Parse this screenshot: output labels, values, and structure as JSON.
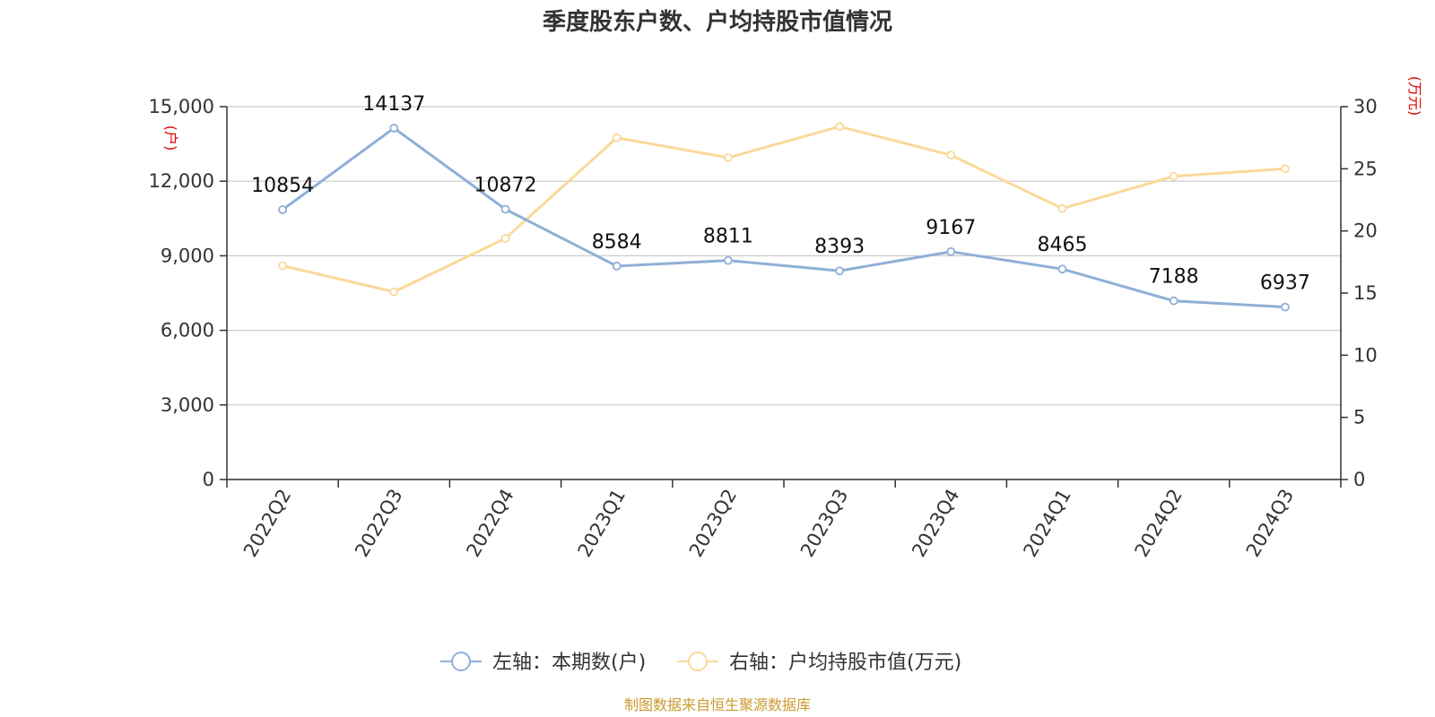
{
  "chart_data": {
    "type": "line",
    "title": "季度股东户数、户均持股市值情况",
    "categories": [
      "2022Q2",
      "2022Q3",
      "2022Q4",
      "2023Q1",
      "2023Q2",
      "2023Q3",
      "2023Q4",
      "2024Q1",
      "2024Q2",
      "2024Q3"
    ],
    "left_axis": {
      "unit": "(户)",
      "ylim": [
        0,
        15000
      ],
      "ticks": [
        "0",
        "3,000",
        "6,000",
        "9,000",
        "12,000",
        "15,000"
      ],
      "tick_values": [
        0,
        3000,
        6000,
        9000,
        12000,
        15000
      ]
    },
    "right_axis": {
      "unit": "(万元)",
      "ylim": [
        0,
        30
      ],
      "ticks": [
        "0",
        "5",
        "10",
        "15",
        "20",
        "25",
        "30"
      ],
      "tick_values": [
        0,
        5,
        10,
        15,
        20,
        25,
        30
      ]
    },
    "series": [
      {
        "name": "左轴：本期数(户)",
        "axis": "left",
        "color": "#8fafd8",
        "values": [
          10854,
          14137,
          10872,
          8584,
          8811,
          8393,
          9167,
          8465,
          7188,
          6937
        ],
        "labels": [
          "10854",
          "14137",
          "10872",
          "8584",
          "8811",
          "8393",
          "9167",
          "8465",
          "7188",
          "6937"
        ]
      },
      {
        "name": "右轴：户均持股市值(万元)",
        "axis": "right",
        "color": "#fad99a",
        "values": [
          17.2,
          15.1,
          19.4,
          27.5,
          25.9,
          28.4,
          26.1,
          21.8,
          24.4,
          25.0
        ]
      }
    ],
    "grid": true,
    "legend": "bottom-center"
  },
  "source": "制图数据来自恒生聚源数据库"
}
